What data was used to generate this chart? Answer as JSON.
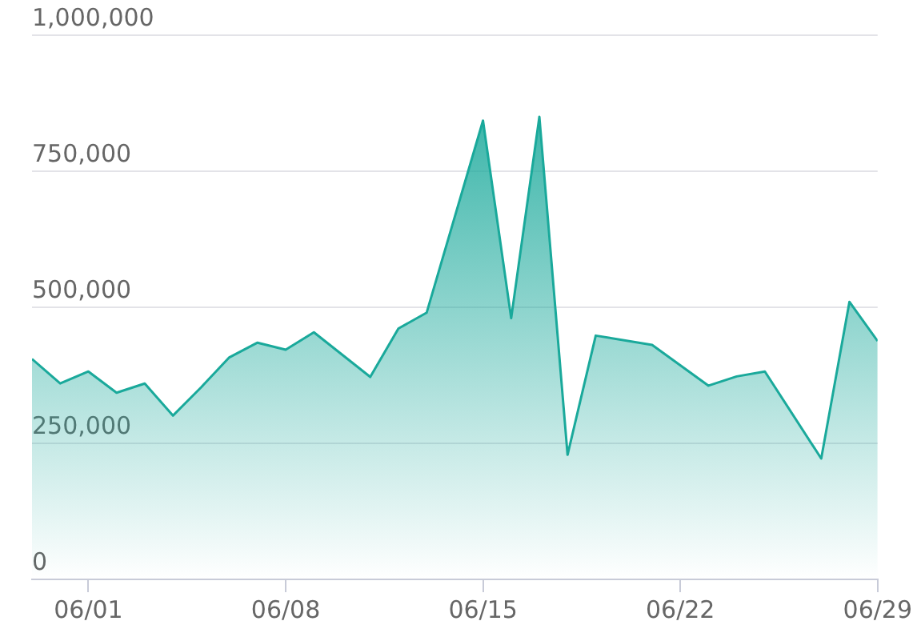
{
  "chart_data": {
    "type": "area",
    "x": [
      "--05-30",
      "--05-31",
      "--06-01",
      "--06-02",
      "--06-03",
      "--06-04",
      "--06-05",
      "--06-06",
      "--06-07",
      "--06-08",
      "--06-09",
      "--06-11",
      "--06-12",
      "--06-13",
      "--06-15",
      "--06-16",
      "--06-17",
      "--06-18",
      "--06-19",
      "--06-21",
      "--06-23",
      "--06-24",
      "--06-25",
      "--06-27",
      "--06-28",
      "--06-29"
    ],
    "series": [
      {
        "color": "#1aa99b",
        "values": [
          405000,
          360000,
          382000,
          343000,
          360000,
          301000,
          353000,
          408000,
          435000,
          422000,
          454000,
          372000,
          461000,
          490000,
          843000,
          480000,
          850000,
          229000,
          448000,
          431000,
          356000,
          373000,
          382000,
          222000,
          510000,
          438000
        ]
      }
    ],
    "xlim": [
      "--05-30",
      "--06-29"
    ],
    "xticks": [
      {
        "value": "--06-01",
        "label": "06/01"
      },
      {
        "value": "--06-08",
        "label": "06/08"
      },
      {
        "value": "--06-15",
        "label": "06/15"
      },
      {
        "value": "--06-22",
        "label": "06/22"
      },
      {
        "value": "--06-29",
        "label": "06/29"
      }
    ],
    "ylim": [
      0,
      1000000
    ],
    "yticks": [
      {
        "value": 0,
        "label": "0"
      },
      {
        "value": 250000,
        "label": "250,000"
      },
      {
        "value": 500000,
        "label": "500,000"
      },
      {
        "value": 750000,
        "label": "750,000"
      },
      {
        "value": 1000000,
        "label": "1,000,000"
      }
    ],
    "grid": "y",
    "legend": false,
    "marker": "none",
    "line_style": "solid"
  }
}
